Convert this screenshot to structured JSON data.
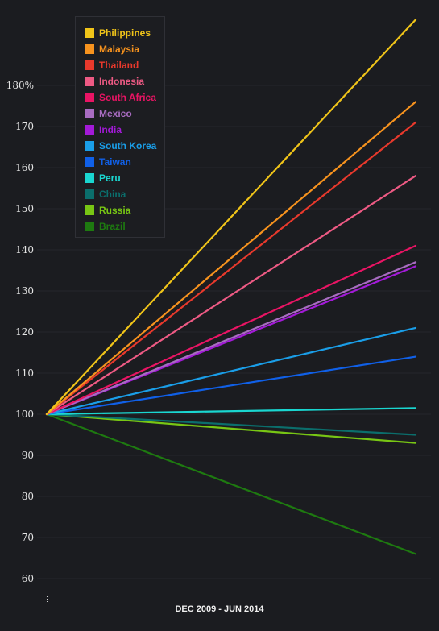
{
  "chart_data": {
    "type": "line",
    "x": [
      "Dec 2009",
      "Jun 2014"
    ],
    "xlabel": "DEC 2009 - JUN 2014",
    "ylabel": "",
    "ylim": [
      60,
      185
    ],
    "yticks": [
      60,
      70,
      80,
      90,
      100,
      110,
      120,
      130,
      140,
      150,
      160,
      170,
      180
    ],
    "ytick_labels": [
      "60",
      "70",
      "80",
      "90",
      "100",
      "110",
      "120",
      "130",
      "140",
      "150",
      "160",
      "170",
      "180%"
    ],
    "legend_position": "top-left",
    "grid": true,
    "series": [
      {
        "name": "Philippines",
        "color": "#f0c419",
        "values": [
          100,
          196
        ]
      },
      {
        "name": "Malaysia",
        "color": "#f7931e",
        "values": [
          100,
          176
        ]
      },
      {
        "name": "Thailand",
        "color": "#e8392c",
        "values": [
          100,
          171
        ]
      },
      {
        "name": "Indonesia",
        "color": "#ee5a84",
        "values": [
          100,
          158
        ]
      },
      {
        "name": "South Africa",
        "color": "#ea1464",
        "values": [
          100,
          141
        ]
      },
      {
        "name": "Mexico",
        "color": "#a86cc1",
        "values": [
          100,
          137
        ]
      },
      {
        "name": "India",
        "color": "#a31ad8",
        "values": [
          100,
          136
        ]
      },
      {
        "name": "South Korea",
        "color": "#1a9ee8",
        "values": [
          100,
          121
        ]
      },
      {
        "name": "Taiwan",
        "color": "#1060e8",
        "values": [
          100,
          114
        ]
      },
      {
        "name": "Peru",
        "color": "#1ad6d0",
        "values": [
          100,
          101.5
        ]
      },
      {
        "name": "China",
        "color": "#0b6e6c",
        "values": [
          100,
          95
        ]
      },
      {
        "name": "Russia",
        "color": "#78c614",
        "values": [
          100,
          93
        ]
      },
      {
        "name": "Brazil",
        "color": "#1e7a10",
        "values": [
          100,
          66
        ]
      }
    ]
  }
}
